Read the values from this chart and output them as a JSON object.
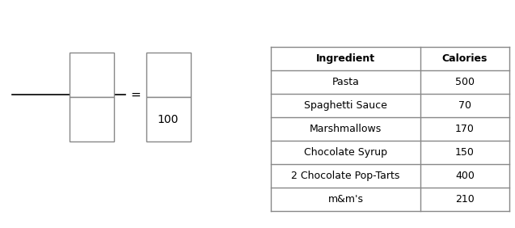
{
  "table_ingredients": [
    "Ingredient",
    "Pasta",
    "Spaghetti Sauce",
    "Marshmallows",
    "Chocolate Syrup",
    "2 Chocolate Pop-Tarts",
    "m&m's"
  ],
  "table_calories": [
    "Calories",
    "500",
    "70",
    "170",
    "150",
    "400",
    "210"
  ],
  "background_color": "#ffffff",
  "box_edge_color": "#888888",
  "text_color": "#000000",
  "header_fontsize": 9,
  "body_fontsize": 9,
  "line_color": "#888888",
  "fraction_line_color": "#000000"
}
